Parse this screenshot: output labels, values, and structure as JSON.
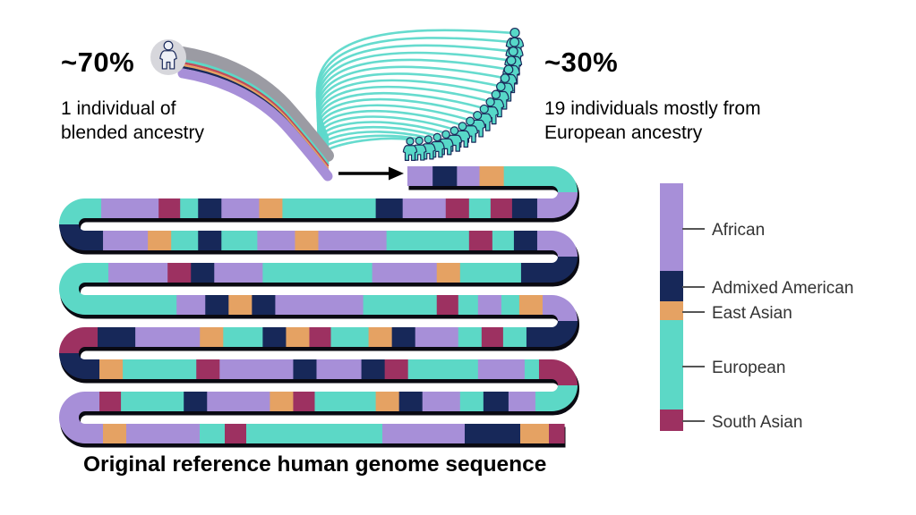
{
  "title": "Original reference human genome sequence",
  "annotations": {
    "left": {
      "pct": "~70%",
      "line1": "1 individual of",
      "line2": "blended ancestry"
    },
    "right": {
      "pct": "~30%",
      "line1": "19 individuals mostly from",
      "line2": "European ancestry"
    }
  },
  "colors": {
    "african": "#A78FD8",
    "admixed_american": "#172859",
    "east_asian": "#E5A263",
    "european": "#5CD8C6",
    "south_asian": "#9D3161",
    "swirl_line": "#5ED9CB",
    "icon_fill": "#57D8C8",
    "icon_outline": "#1B2A5B",
    "gray_band": "#9B9BA3",
    "gray_circle": "#D7D7DC",
    "single_icon_fill": "#EEF0F6",
    "red_stripe": "#C14B5A",
    "shadow": "#0A0A12",
    "arrow": "#000000",
    "legend_text": "#333333",
    "tick": "#555555"
  },
  "legend": {
    "items": [
      {
        "label": "African",
        "color": "african",
        "seg_h": 98,
        "tick_y": 256
      },
      {
        "label": "Admixed American",
        "color": "admixed_american",
        "seg_h": 34,
        "tick_y": 321
      },
      {
        "label": "East Asian",
        "color": "east_asian",
        "seg_h": 21,
        "tick_y": 349
      },
      {
        "label": "European",
        "color": "european",
        "seg_h": 100,
        "tick_y": 410
      },
      {
        "label": "South Asian",
        "color": "south_asian",
        "seg_h": 24,
        "tick_y": 471
      }
    ]
  },
  "flow": {
    "swirl_line_count": 19,
    "population_icon_count": 19,
    "single_individual_count": 1
  },
  "ribbon": {
    "color_key": {
      "P": "african",
      "N": "admixed_american",
      "O": "east_asian",
      "T": "european",
      "S": "south_asian"
    },
    "rows": [
      [
        [
          "P",
          28
        ],
        [
          "N",
          27
        ],
        [
          "P",
          25
        ],
        [
          "O",
          27
        ],
        [
          "T",
          53
        ]
      ],
      [
        [
          "T",
          18
        ],
        [
          "P",
          64
        ],
        [
          "S",
          24
        ],
        [
          "T",
          20
        ],
        [
          "N",
          26
        ],
        [
          "P",
          42
        ],
        [
          "O",
          26
        ],
        [
          "T",
          104
        ],
        [
          "N",
          30
        ],
        [
          "P",
          48
        ],
        [
          "S",
          26
        ],
        [
          "T",
          24
        ],
        [
          "S",
          24
        ],
        [
          "N",
          28
        ],
        [
          "P",
          16
        ]
      ],
      [
        [
          "N",
          20
        ],
        [
          "P",
          50
        ],
        [
          "O",
          26
        ],
        [
          "T",
          30
        ],
        [
          "N",
          26
        ],
        [
          "T",
          40
        ],
        [
          "P",
          42
        ],
        [
          "O",
          26
        ],
        [
          "P",
          76
        ],
        [
          "T",
          92
        ],
        [
          "S",
          26
        ],
        [
          "T",
          24
        ],
        [
          "N",
          26
        ],
        [
          "P",
          16
        ]
      ],
      [
        [
          "T",
          26
        ],
        [
          "P",
          66
        ],
        [
          "S",
          26
        ],
        [
          "N",
          26
        ],
        [
          "P",
          54
        ],
        [
          "T",
          122
        ],
        [
          "P",
          72
        ],
        [
          "O",
          26
        ],
        [
          "T",
          68
        ],
        [
          "N",
          34
        ]
      ],
      [
        [
          "T",
          102
        ],
        [
          "P",
          32
        ],
        [
          "N",
          26
        ],
        [
          "O",
          26
        ],
        [
          "N",
          26
        ],
        [
          "P",
          98
        ],
        [
          "T",
          82
        ],
        [
          "S",
          24
        ],
        [
          "T",
          22
        ],
        [
          "P",
          26
        ],
        [
          "T",
          20
        ],
        [
          "O",
          26
        ],
        [
          "P",
          10
        ]
      ],
      [
        [
          "S",
          14
        ],
        [
          "N",
          42
        ],
        [
          "P",
          72
        ],
        [
          "O",
          26
        ],
        [
          "T",
          44
        ],
        [
          "N",
          26
        ],
        [
          "O",
          26
        ],
        [
          "S",
          24
        ],
        [
          "T",
          42
        ],
        [
          "O",
          26
        ],
        [
          "N",
          26
        ],
        [
          "P",
          48
        ],
        [
          "T",
          26
        ],
        [
          "S",
          24
        ],
        [
          "T",
          26
        ],
        [
          "N",
          28
        ]
      ],
      [
        [
          "N",
          16
        ],
        [
          "O",
          26
        ],
        [
          "T",
          82
        ],
        [
          "S",
          26
        ],
        [
          "P",
          82
        ],
        [
          "N",
          26
        ],
        [
          "P",
          50
        ],
        [
          "N",
          26
        ],
        [
          "S",
          26
        ],
        [
          "T",
          78
        ],
        [
          "P",
          52
        ],
        [
          "T",
          16
        ],
        [
          "S",
          14
        ]
      ],
      [
        [
          "P",
          16
        ],
        [
          "S",
          24
        ],
        [
          "T",
          70
        ],
        [
          "N",
          26
        ],
        [
          "P",
          70
        ],
        [
          "O",
          26
        ],
        [
          "S",
          24
        ],
        [
          "T",
          68
        ],
        [
          "O",
          26
        ],
        [
          "N",
          26
        ],
        [
          "P",
          42
        ],
        [
          "T",
          26
        ],
        [
          "N",
          28
        ],
        [
          "P",
          30
        ],
        [
          "T",
          18
        ]
      ],
      [
        [
          "P",
          20
        ],
        [
          "O",
          26
        ],
        [
          "P",
          82
        ],
        [
          "T",
          28
        ],
        [
          "S",
          24
        ],
        [
          "T",
          152
        ],
        [
          "P",
          92
        ],
        [
          "N",
          62
        ],
        [
          "O",
          32
        ],
        [
          "S",
          17
        ]
      ]
    ]
  }
}
